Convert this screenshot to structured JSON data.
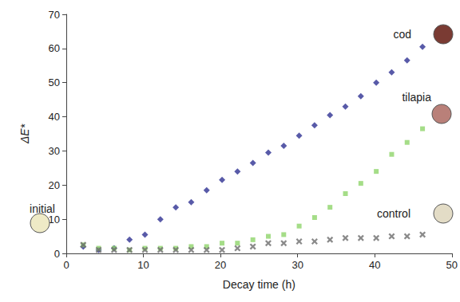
{
  "chart_data": {
    "type": "scatter",
    "x_label": "Decay time (h)",
    "y_label": "ΔE*",
    "xlim": [
      0,
      50
    ],
    "xticks": [
      0,
      10,
      20,
      30,
      40,
      50
    ],
    "ylim": [
      0,
      70
    ],
    "yticks": [
      0,
      10,
      20,
      30,
      40,
      50,
      60,
      70
    ],
    "grid": false,
    "x": [
      2.2,
      4.2,
      6.2,
      8.2,
      10.2,
      12.2,
      14.2,
      16.2,
      18.2,
      20.2,
      22.2,
      24.2,
      26.2,
      28.2,
      30.2,
      32.2,
      34.2,
      36.2,
      38.2,
      40.2,
      42.2,
      44.2,
      46.2
    ],
    "series": [
      {
        "name": "cod",
        "color": "#2e3192",
        "marker": "diamond",
        "values": [
          2,
          1,
          1.5,
          4,
          5.5,
          10,
          13.5,
          15,
          18.5,
          21.5,
          24,
          26.5,
          29.5,
          31.5,
          34.5,
          37.5,
          40.5,
          43,
          46,
          50,
          53,
          56.5,
          60.5
        ]
      },
      {
        "name": "tilapia",
        "color": "#8fd46a",
        "marker": "square",
        "values": [
          2.5,
          1.5,
          1.5,
          1,
          1.5,
          1.5,
          1.5,
          2,
          2,
          3,
          3,
          4,
          5,
          5.5,
          8,
          10.5,
          13.5,
          17.5,
          20.5,
          24,
          29,
          32.5,
          36.5
        ]
      },
      {
        "name": "control",
        "color": "#6d6d6d",
        "marker": "x",
        "values": [
          2.5,
          1,
          1,
          1,
          1,
          1,
          1,
          1,
          1,
          1,
          1.5,
          2,
          3,
          3,
          3.5,
          3.5,
          4,
          4.5,
          4.5,
          4.5,
          5,
          5,
          5.5
        ]
      }
    ],
    "annotations": [
      {
        "text": "cod",
        "color": "#7a3b33"
      },
      {
        "text": "tilapia",
        "color": "#b98079"
      },
      {
        "text": "control",
        "color": "#e3dcc6"
      },
      {
        "text": "initial",
        "color": "#eeeac6"
      }
    ]
  }
}
